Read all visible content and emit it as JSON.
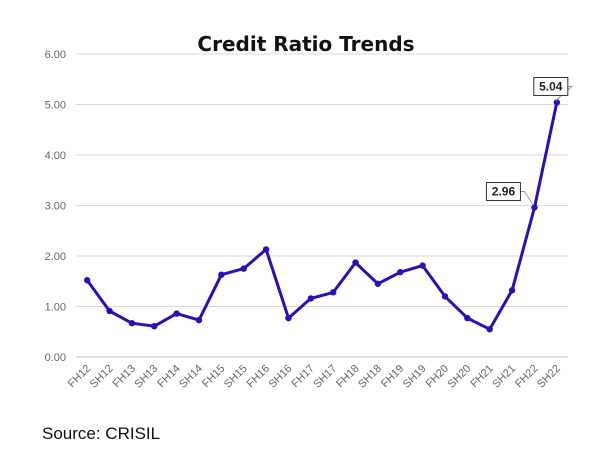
{
  "source": "Source: CRISIL",
  "colors": {
    "line": "#2412b8",
    "grid": "#d9d9d9",
    "tick_text": "#666666"
  },
  "chart_data": {
    "type": "line",
    "title": "Credit Ratio Trends",
    "xlabel": "",
    "ylabel": "",
    "ylim": [
      0,
      6
    ],
    "yticks": [
      "0.00",
      "1.00",
      "2.00",
      "3.00",
      "4.00",
      "5.00",
      "6.00"
    ],
    "grid": true,
    "categories": [
      "FH12",
      "SH12",
      "FH13",
      "SH13",
      "FH14",
      "SH14",
      "FH15",
      "SH15",
      "FH16",
      "SH16",
      "FH17",
      "SH17",
      "FH18",
      "SH18",
      "FH19",
      "SH19",
      "FH20",
      "SH20",
      "FH21",
      "SH21",
      "FH22",
      "SH22"
    ],
    "series": [
      {
        "values": [
          1.52,
          0.91,
          0.67,
          0.61,
          0.86,
          0.73,
          1.63,
          1.75,
          2.13,
          0.77,
          1.16,
          1.28,
          1.87,
          1.45,
          1.68,
          1.81,
          1.2,
          0.77,
          0.55,
          1.32,
          2.96,
          5.04
        ]
      }
    ],
    "annotations": [
      {
        "text": "2.96",
        "category": "FH22"
      },
      {
        "text": "5.04",
        "category": "SH22"
      }
    ]
  }
}
